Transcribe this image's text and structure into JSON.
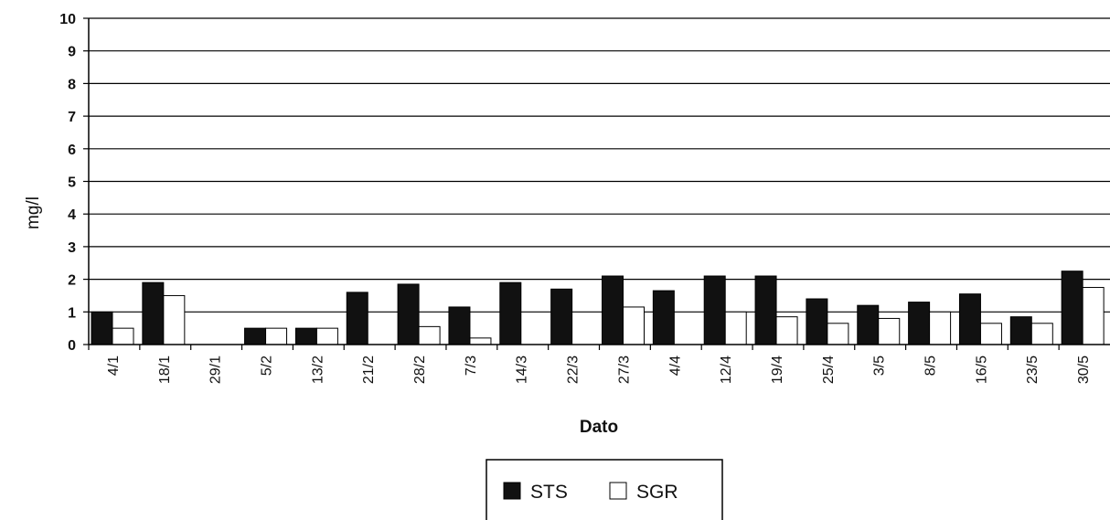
{
  "chart_data": {
    "type": "bar",
    "categories": [
      "4/1",
      "18/1",
      "29/1",
      "5/2",
      "13/2",
      "21/2",
      "28/2",
      "7/3",
      "14/3",
      "22/3",
      "27/3",
      "4/4",
      "12/4",
      "19/4",
      "25/4",
      "3/5",
      "8/5",
      "16/5",
      "23/5",
      "30/5"
    ],
    "series": [
      {
        "name": "STS",
        "color": "#111111",
        "values": [
          1.0,
          1.9,
          0,
          0.5,
          0.5,
          1.6,
          1.85,
          1.15,
          1.9,
          1.7,
          2.1,
          1.65,
          2.1,
          2.1,
          1.4,
          1.2,
          1.3,
          1.55,
          0.85,
          2.25
        ]
      },
      {
        "name": "SGR",
        "color": "#ffffff",
        "values": [
          0.5,
          1.5,
          0,
          0.5,
          0.5,
          0,
          0.55,
          0.2,
          0,
          0,
          1.15,
          0,
          1.0,
          0.85,
          0.65,
          0.8,
          1.0,
          0.65,
          0.65,
          1.75
        ]
      }
    ],
    "xlabel": "Dato",
    "ylabel": "mg/l",
    "ylim": [
      0,
      10
    ],
    "yticks": [
      0,
      1,
      2,
      3,
      4,
      5,
      6,
      7,
      8,
      9,
      10
    ],
    "grid": true,
    "legend": {
      "position": "bottom-center"
    }
  }
}
